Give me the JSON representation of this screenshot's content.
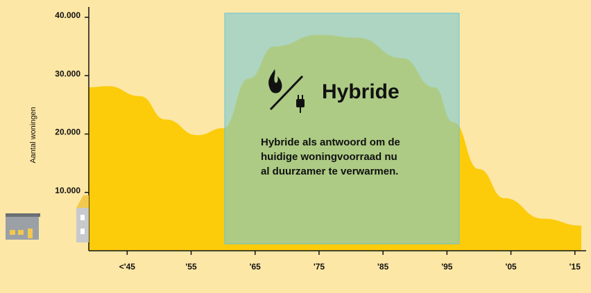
{
  "chart_data": {
    "type": "area",
    "y_label": "Aantal woningen",
    "color": "#fccc0a",
    "x": [
      1939,
      1942,
      1947,
      1951,
      1956,
      1960,
      1964,
      1968,
      1975,
      1981,
      1988,
      1993,
      1996,
      2000,
      2004,
      2010,
      2016
    ],
    "values": [
      28000,
      28200,
      26500,
      22500,
      19800,
      21000,
      29500,
      35000,
      37000,
      36500,
      33000,
      28000,
      22000,
      14000,
      9000,
      5500,
      4300
    ],
    "xlim": [
      1939,
      2016
    ],
    "xticks": [
      {
        "value": 1945,
        "label": "<'45"
      },
      {
        "value": 1955,
        "label": "'55"
      },
      {
        "value": 1965,
        "label": "'65"
      },
      {
        "value": 1975,
        "label": "'75"
      },
      {
        "value": 1985,
        "label": "'85"
      },
      {
        "value": 1995,
        "label": "'95"
      },
      {
        "value": 2005,
        "label": "'05"
      },
      {
        "value": 2015,
        "label": "'15"
      }
    ],
    "ylim": [
      0,
      40000
    ],
    "yticks": [
      {
        "value": 10000,
        "label": "10.000"
      },
      {
        "value": 20000,
        "label": "20.000"
      },
      {
        "value": 30000,
        "label": "30.000"
      },
      {
        "value": 40000,
        "label": "40.000"
      }
    ],
    "annotation": {
      "title": "Hybride",
      "lines": [
        "Hybride als antwoord om de",
        "huidige woningvoorraad nu",
        "al duurzamer te verwarmen."
      ]
    }
  }
}
